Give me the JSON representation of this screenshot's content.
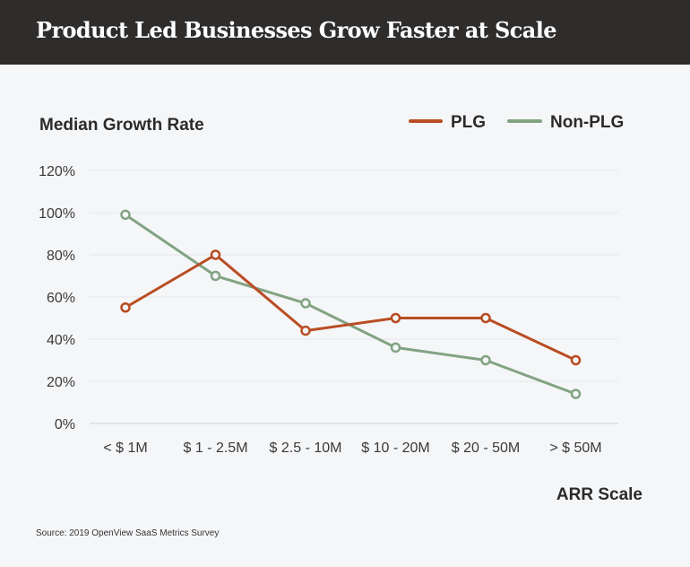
{
  "header": {
    "title": "Product Led Businesses Grow Faster at Scale"
  },
  "source": "Source: 2019 OpenView SaaS Metrics Survey",
  "colors": {
    "header_bg": "#2f2d2c",
    "plg": "#b94d24",
    "non_plg": "#82a383",
    "background": "#f5f6f8"
  },
  "chart_data": {
    "type": "line",
    "title": "Product Led Businesses Grow Faster at Scale",
    "ylabel": "Median Growth Rate",
    "xlabel": "ARR Scale",
    "categories": [
      "< $ 1M",
      "$ 1 - 2.5M",
      "$ 2.5 - 10M",
      "$ 10 - 20M",
      "$ 20 - 50M",
      "> $ 50M"
    ],
    "ylim": [
      0,
      120
    ],
    "yticks": [
      0,
      20,
      40,
      60,
      80,
      100,
      120
    ],
    "ytick_labels": [
      "0%",
      "20%",
      "40%",
      "60%",
      "80%",
      "100%",
      "120%"
    ],
    "grid": true,
    "legend_position": "top-right",
    "series": [
      {
        "name": "PLG",
        "color": "#b94d24",
        "values": [
          55,
          80,
          44,
          50,
          50,
          30
        ]
      },
      {
        "name": "Non-PLG",
        "color": "#82a383",
        "values": [
          99,
          70,
          57,
          36,
          30,
          14
        ]
      }
    ]
  }
}
